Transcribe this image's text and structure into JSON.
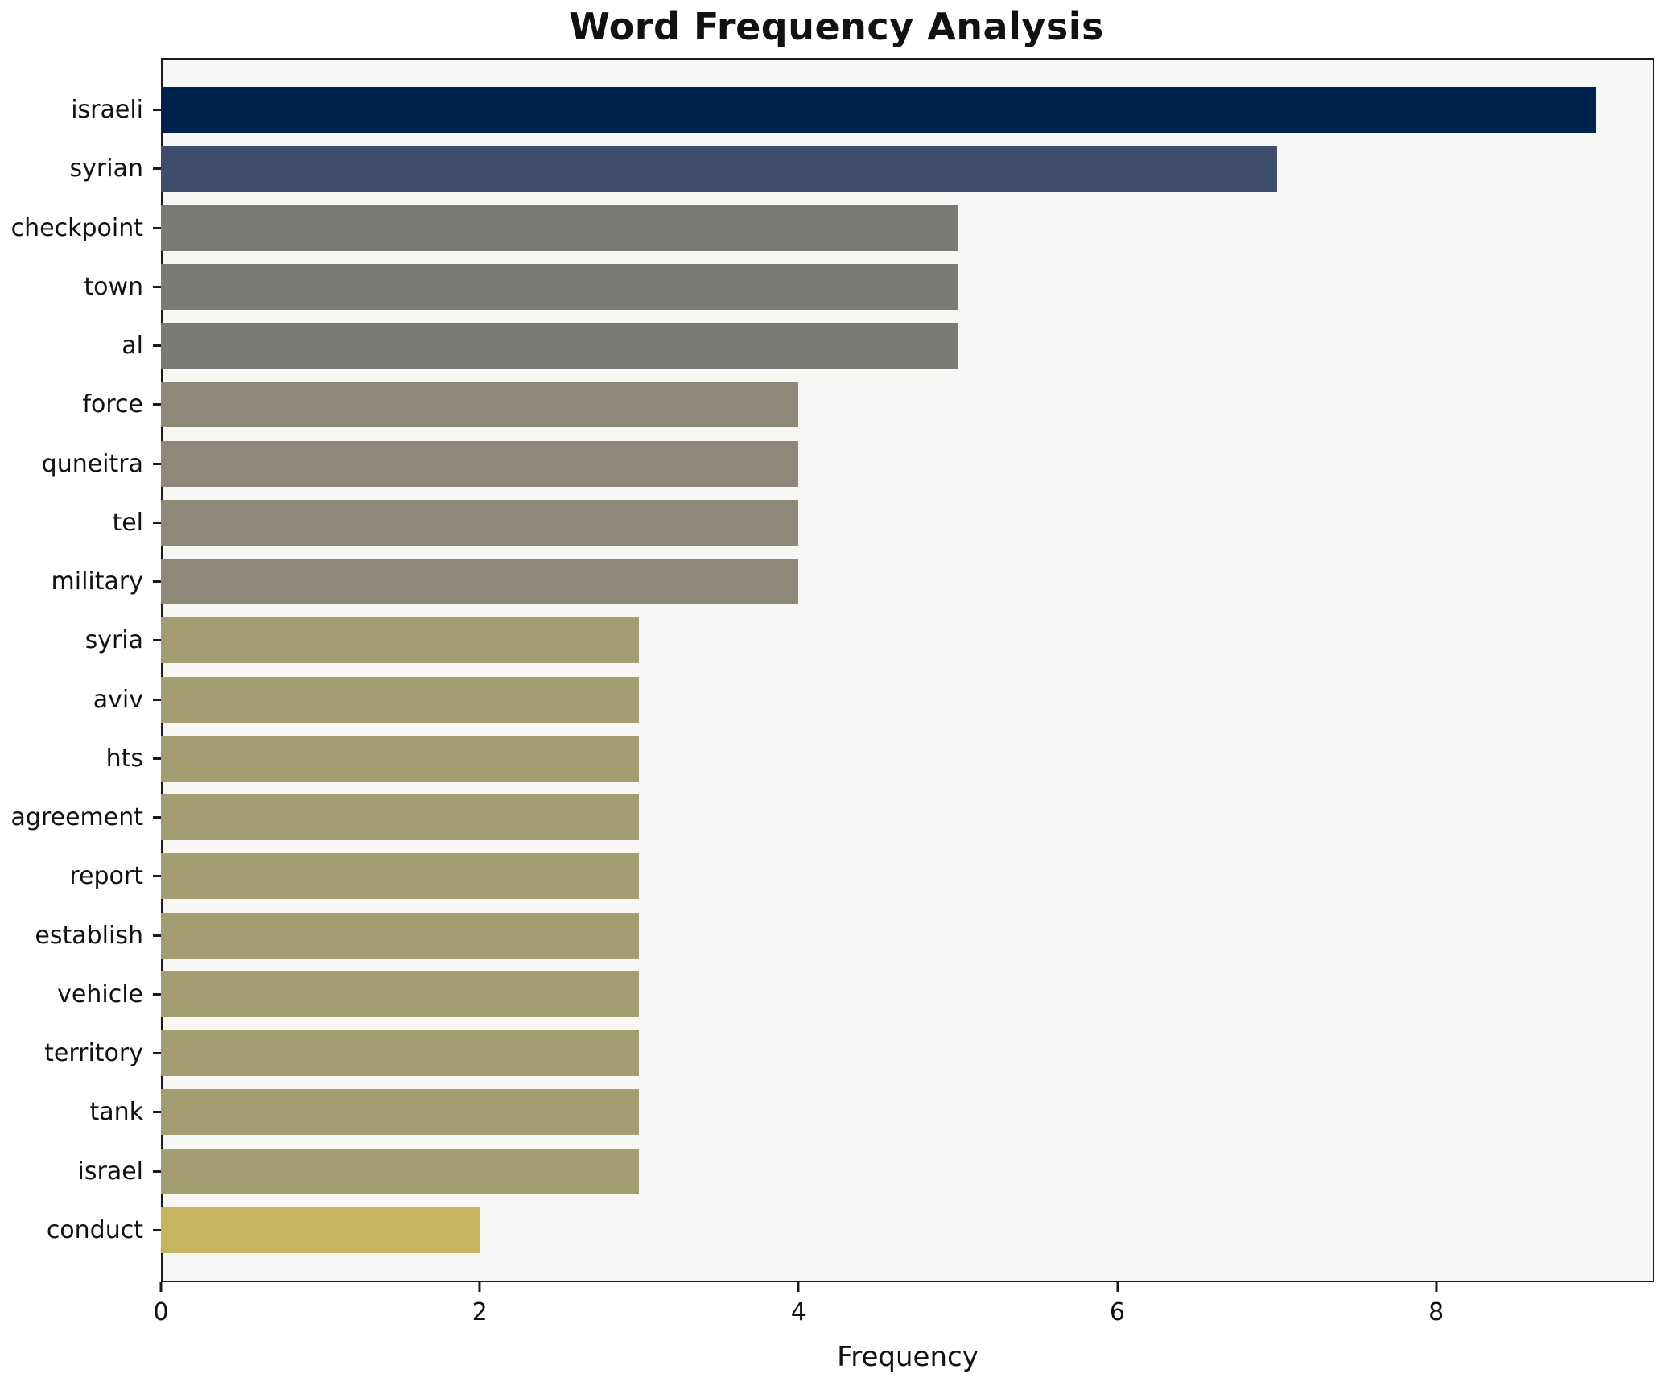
{
  "chart_data": {
    "type": "bar",
    "orientation": "horizontal",
    "title": "Word Frequency Analysis",
    "xlabel": "Frequency",
    "ylabel": "",
    "xlim": [
      0,
      9.37
    ],
    "xticks": [
      0,
      2,
      4,
      6,
      8
    ],
    "grid": false,
    "legend_position": "none",
    "plot_background": "#f7f7f5",
    "categories": [
      "israeli",
      "syrian",
      "checkpoint",
      "town",
      "al",
      "force",
      "quneitra",
      "tel",
      "military",
      "syria",
      "aviv",
      "hts",
      "agreement",
      "report",
      "establish",
      "vehicle",
      "territory",
      "tank",
      "israel",
      "conduct"
    ],
    "values": [
      9,
      7,
      5,
      5,
      5,
      4,
      4,
      4,
      4,
      3,
      3,
      3,
      3,
      3,
      3,
      3,
      3,
      3,
      3,
      2
    ],
    "colors": [
      "#00224e",
      "#3e4c6d",
      "#7b7a77",
      "#7b7a77",
      "#7b7a77",
      "#8e8878",
      "#8e8878",
      "#8e8878",
      "#8e8878",
      "#a49d72",
      "#a49d72",
      "#a49d72",
      "#a49d72",
      "#a49d72",
      "#a49d72",
      "#a49d72",
      "#a49d72",
      "#a49d72",
      "#a49d72",
      "#c6b45f"
    ]
  }
}
